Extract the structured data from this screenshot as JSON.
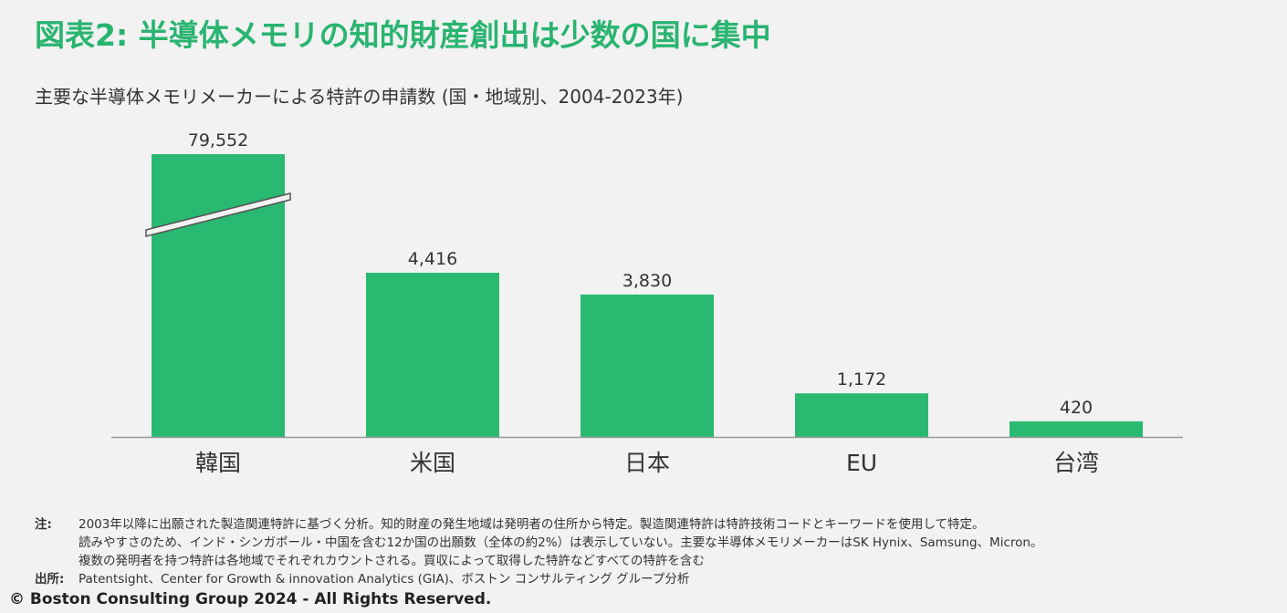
{
  "title": "図表2: 半導体メモリの知的財産創出は少数の国に集中",
  "subtitle": "主要な半導体メモリメーカーによる特許の申請数 (国・地域別、2004-2023年)",
  "chart_data": {
    "type": "bar",
    "categories": [
      "韓国",
      "米国",
      "日本",
      "EU",
      "台湾"
    ],
    "values": [
      79552,
      4416,
      3830,
      1172,
      420
    ],
    "data_labels": [
      "79,552",
      "4,416",
      "3,830",
      "1,172",
      "420"
    ],
    "broken_axis": true,
    "bar_color": "#29b970",
    "grid": false,
    "legend": "none"
  },
  "notes": {
    "note_label": "注:",
    "note_lines": [
      "2003年以降に出願された製造関連特許に基づく分析。知的財産の発生地域は発明者の住所から特定。製造関連特許は特許技術コードとキーワードを使用して特定。",
      "読みやすさのため、インド・シンガポール・中国を含む12か国の出願数（全体の約2%）は表示していない。主要な半導体メモリメーカーはSK Hynix、Samsung、Micron。",
      "複数の発明者を持つ特許は各地域でそれぞれカウントされる。買収によって取得した特許などすべての特許を含む"
    ],
    "source_label": "出所:",
    "source_text": "Patentsight、Center for Growth & innovation Analytics (GIA)、ボストン コンサルティング グループ分析"
  },
  "copyright": "© Boston Consulting Group 2024 - All Rights Reserved.",
  "colors": {
    "accent": "#29b470",
    "bar": "#29b970",
    "background": "#f2f2f2"
  }
}
